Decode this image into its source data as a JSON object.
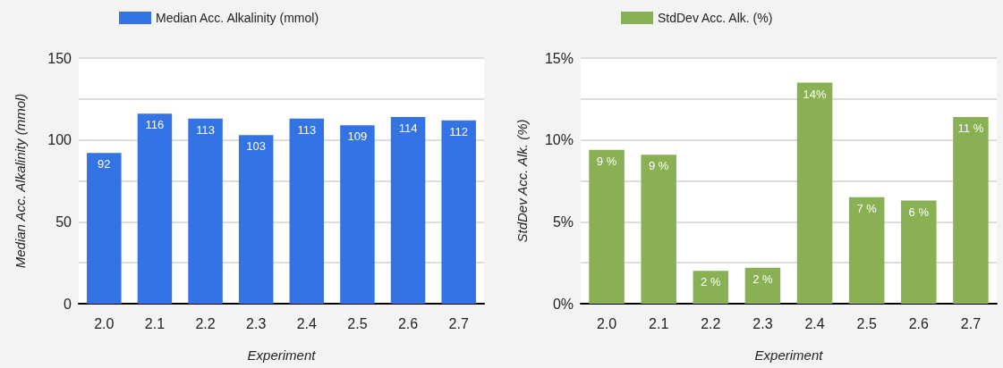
{
  "chart_data": [
    {
      "type": "bar",
      "categories": [
        "2.0",
        "2.1",
        "2.2",
        "2.3",
        "2.4",
        "2.5",
        "2.6",
        "2.7"
      ],
      "xlabel": "Experiment",
      "ylabel": "Median Acc. Alkalinity (mmol)",
      "series": [
        {
          "name": "Median Acc. Alkalinity (mmol)",
          "color": "#3373e4",
          "values": [
            92,
            116,
            113,
            103,
            113,
            109,
            114,
            112
          ]
        }
      ],
      "ylim": [
        0,
        150
      ],
      "yticks": [
        0,
        {
          "value": 25,
          "label": null
        },
        50,
        {
          "value": 75,
          "label": null
        },
        100,
        {
          "value": 125,
          "label": null
        },
        150
      ],
      "grid": "y",
      "legend": "top left",
      "data_labels": true
    },
    {
      "type": "bar",
      "categories": [
        "2.0",
        "2.1",
        "2.2",
        "2.3",
        "2.4",
        "2.5",
        "2.6",
        "2.7"
      ],
      "xlabel": "Experiment",
      "ylabel": "StdDev Acc. Alk. (%)",
      "series": [
        {
          "name": "StdDev Acc. Alk. (%)",
          "color": "#89b153",
          "values": [
            9.4,
            9.1,
            2.0,
            2.2,
            13.5,
            6.5,
            6.3,
            11.4
          ],
          "value_labels": [
            "9 %",
            "9 %",
            "2 %",
            "2 %",
            "14%",
            "7 %",
            "6 %",
            "11 %"
          ]
        }
      ],
      "ylim": [
        0,
        15
      ],
      "yticks": [
        {
          "value": 0,
          "label": "0%"
        },
        {
          "value": 2.5,
          "label": null
        },
        {
          "value": 5,
          "label": "5%"
        },
        {
          "value": 7.5,
          "label": null
        },
        {
          "value": 10,
          "label": "10%"
        },
        {
          "value": 12.5,
          "label": null
        },
        {
          "value": 15,
          "label": "15%"
        }
      ],
      "grid": "y",
      "legend": "top left"
    }
  ]
}
